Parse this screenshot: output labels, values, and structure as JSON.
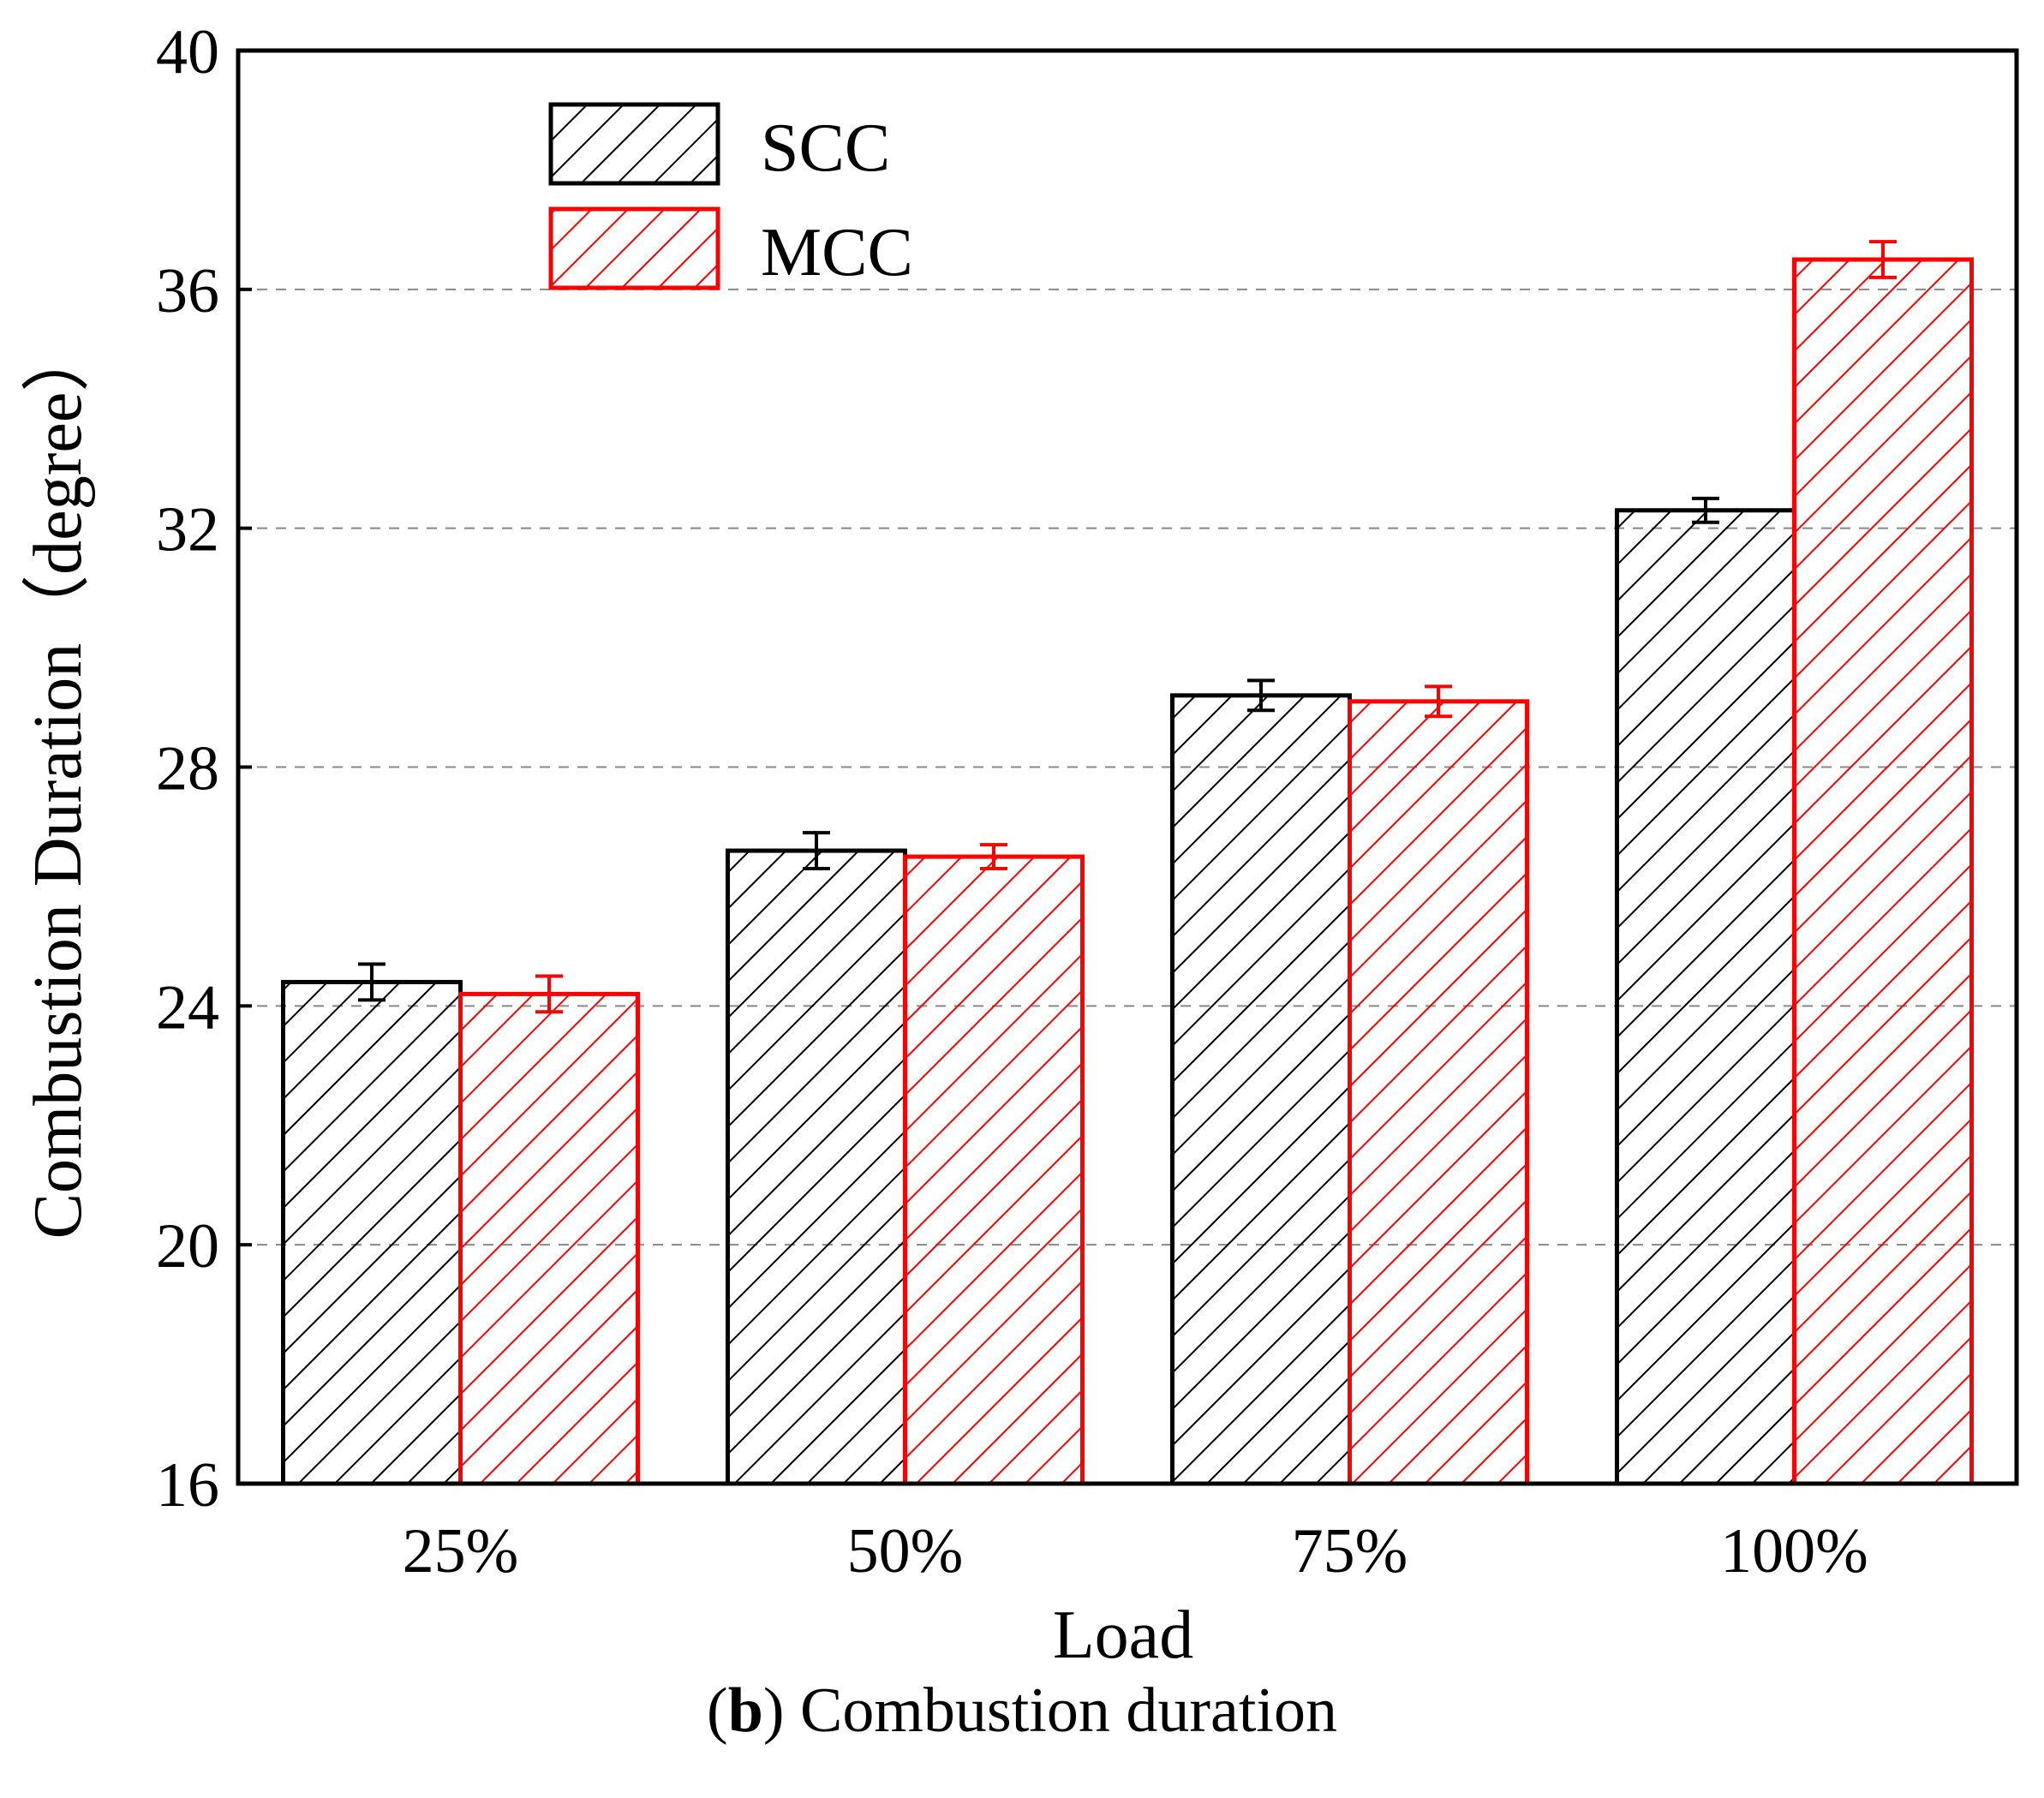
{
  "chart_data": {
    "type": "bar",
    "categories": [
      "25%",
      "50%",
      "75%",
      "100%"
    ],
    "series": [
      {
        "name": "SCC",
        "color": "#000000",
        "values": [
          24.4,
          26.6,
          29.2,
          32.3
        ],
        "errors": [
          0.3,
          0.3,
          0.25,
          0.2
        ]
      },
      {
        "name": "MCC",
        "color": "#ff0000",
        "values": [
          24.2,
          26.5,
          29.1,
          36.5
        ],
        "errors": [
          0.3,
          0.2,
          0.25,
          0.3
        ]
      }
    ],
    "xlabel": "Load",
    "ylabel": "Combustion Duration（degree）",
    "ylim": [
      16,
      40
    ],
    "yticks": [
      16,
      20,
      24,
      28,
      32,
      36,
      40
    ],
    "grid": "horizontal dashed",
    "legend_position": "top-left",
    "hatch": "diagonal"
  },
  "caption": {
    "label": "b",
    "text": "Combustion duration"
  }
}
